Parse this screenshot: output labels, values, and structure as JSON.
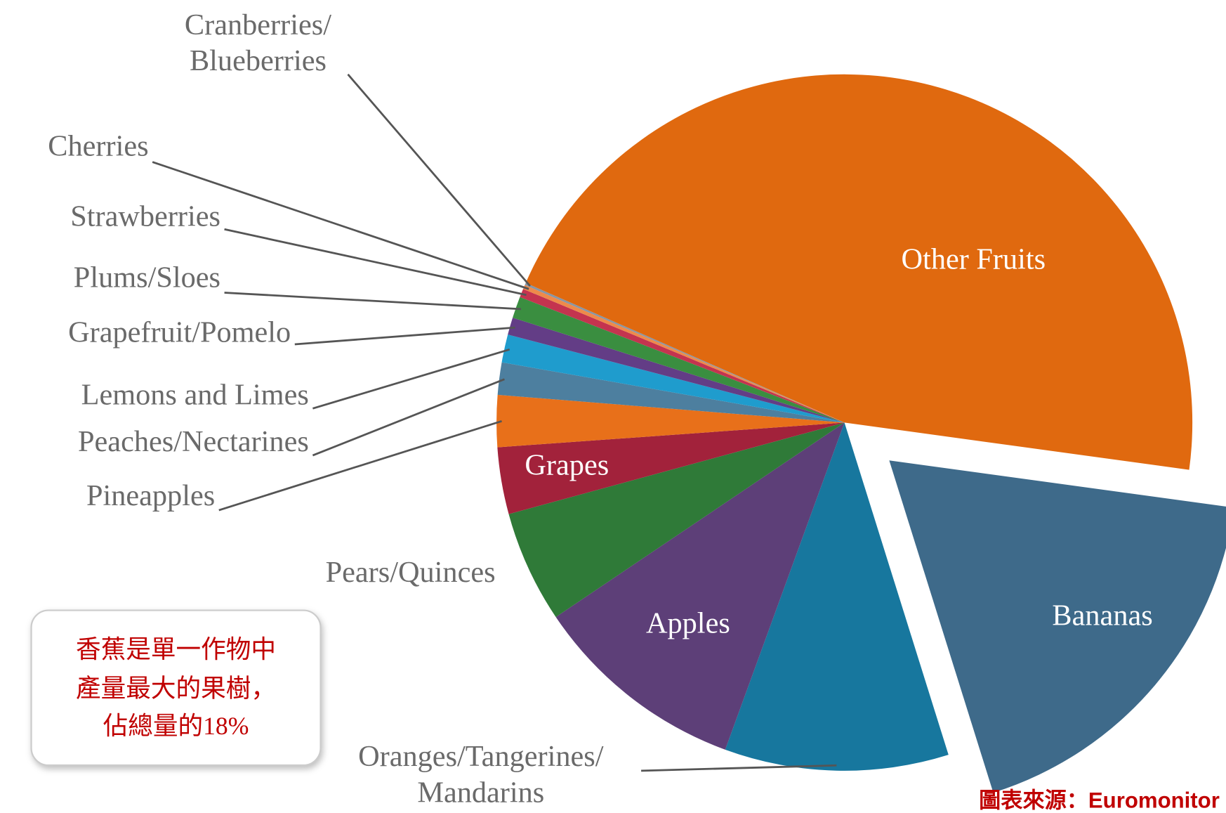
{
  "chart_data": {
    "type": "pie",
    "categories": [
      "Bananas",
      "Oranges/Tangerines/\nMandarins",
      "Apples",
      "Pears/Quinces",
      "Grapes",
      "Pineapples",
      "Peaches/Nectarines",
      "Lemons and Limes",
      "Grapefruit/Pomelo",
      "Plums/Sloes",
      "Strawberries",
      "Cherries",
      "Cranberries/\nBlueberries",
      "Other Fruits"
    ],
    "values": [
      18,
      10.4,
      10,
      5.2,
      3.1,
      2.4,
      1.5,
      1.3,
      0.8,
      1.0,
      0.4,
      0.2,
      0.1,
      45.6
    ],
    "colors": [
      "#3e6a8a",
      "#17779e",
      "#5d3f78",
      "#2f7a38",
      "#a2223b",
      "#e8701a",
      "#4d7f9f",
      "#1f9ccd",
      "#633d86",
      "#3a8e40",
      "#c4344f",
      "#ee8a4a",
      "#8796a6",
      "#e0690f"
    ],
    "exploded": "Bananas",
    "annotation": [
      "香蕉是單一作物中",
      "產量最大的果樹，",
      "佔總量的18%"
    ],
    "source": "圖表來源：Euromonitor"
  }
}
